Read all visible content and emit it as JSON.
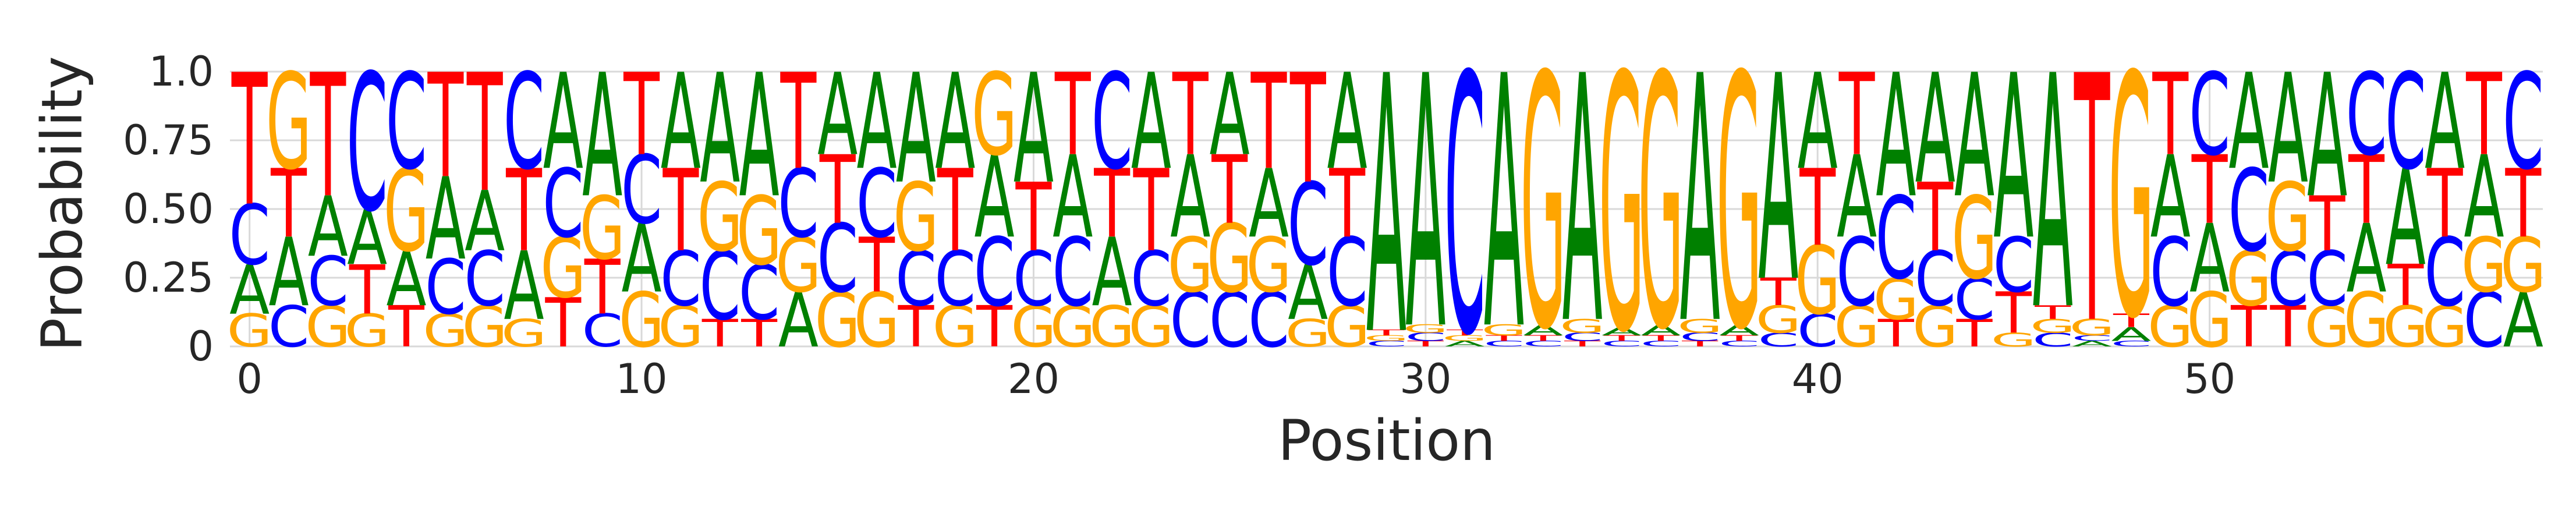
{
  "chart_data": {
    "type": "sequence-logo",
    "xlabel": "Position",
    "ylabel": "Probability",
    "xlim": [
      -0.5,
      58.5
    ],
    "ylim": [
      0,
      1
    ],
    "xticks": [
      0,
      10,
      20,
      30,
      40,
      50
    ],
    "yticks": [
      0,
      0.25,
      0.5,
      0.75,
      1.0
    ],
    "ytick_labels": [
      "0",
      "0.25",
      "0.50",
      "0.75",
      "1.0"
    ],
    "grid": true,
    "colors": {
      "A": "#008000",
      "C": "#0000ff",
      "G": "#ffa500",
      "T": "#ff0000"
    },
    "positions": [
      {
        "A": 0.18,
        "C": 0.22,
        "G": 0.12,
        "T": 0.48
      },
      {
        "A": 0.25,
        "C": 0.15,
        "G": 0.35,
        "T": 0.25
      },
      {
        "A": 0.22,
        "C": 0.18,
        "G": 0.15,
        "T": 0.45
      },
      {
        "A": 0.2,
        "C": 0.5,
        "G": 0.12,
        "T": 0.18
      },
      {
        "A": 0.2,
        "C": 0.35,
        "G": 0.3,
        "T": 0.15
      },
      {
        "A": 0.3,
        "C": 0.2,
        "G": 0.12,
        "T": 0.38
      },
      {
        "A": 0.22,
        "C": 0.2,
        "G": 0.15,
        "T": 0.43
      },
      {
        "A": 0.25,
        "C": 0.35,
        "G": 0.1,
        "T": 0.3
      },
      {
        "A": 0.35,
        "C": 0.25,
        "G": 0.22,
        "T": 0.18
      },
      {
        "A": 0.45,
        "C": 0.12,
        "G": 0.23,
        "T": 0.2
      },
      {
        "A": 0.25,
        "C": 0.25,
        "G": 0.2,
        "T": 0.3
      },
      {
        "A": 0.35,
        "C": 0.2,
        "G": 0.15,
        "T": 0.3
      },
      {
        "A": 0.4,
        "C": 0.25,
        "G": 0.25,
        "T": 0.1
      },
      {
        "A": 0.45,
        "C": 0.2,
        "G": 0.25,
        "T": 0.1
      },
      {
        "A": 0.2,
        "C": 0.25,
        "G": 0.2,
        "T": 0.35
      },
      {
        "A": 0.3,
        "C": 0.25,
        "G": 0.2,
        "T": 0.25
      },
      {
        "A": 0.35,
        "C": 0.25,
        "G": 0.2,
        "T": 0.2
      },
      {
        "A": 0.4,
        "C": 0.2,
        "G": 0.25,
        "T": 0.15
      },
      {
        "A": 0.35,
        "C": 0.2,
        "G": 0.15,
        "T": 0.3
      },
      {
        "A": 0.3,
        "C": 0.25,
        "G": 0.3,
        "T": 0.15
      },
      {
        "A": 0.4,
        "C": 0.2,
        "G": 0.15,
        "T": 0.25
      },
      {
        "A": 0.3,
        "C": 0.25,
        "G": 0.15,
        "T": 0.3
      },
      {
        "A": 0.25,
        "C": 0.35,
        "G": 0.15,
        "T": 0.25
      },
      {
        "A": 0.35,
        "C": 0.2,
        "G": 0.15,
        "T": 0.3
      },
      {
        "A": 0.3,
        "C": 0.2,
        "G": 0.2,
        "T": 0.3
      },
      {
        "A": 0.3,
        "C": 0.2,
        "G": 0.25,
        "T": 0.25
      },
      {
        "A": 0.25,
        "C": 0.2,
        "G": 0.2,
        "T": 0.35
      },
      {
        "A": 0.2,
        "C": 0.3,
        "G": 0.1,
        "T": 0.4
      },
      {
        "A": 0.35,
        "C": 0.25,
        "G": 0.15,
        "T": 0.25
      },
      {
        "A": 0.94,
        "C": 0.02,
        "G": 0.02,
        "T": 0.02
      },
      {
        "A": 0.92,
        "C": 0.03,
        "G": 0.03,
        "T": 0.02
      },
      {
        "A": 0.02,
        "C": 0.94,
        "G": 0.02,
        "T": 0.02
      },
      {
        "A": 0.92,
        "C": 0.02,
        "G": 0.04,
        "T": 0.02
      },
      {
        "A": 0.04,
        "C": 0.02,
        "G": 0.92,
        "T": 0.02
      },
      {
        "A": 0.9,
        "C": 0.03,
        "G": 0.05,
        "T": 0.02
      },
      {
        "A": 0.03,
        "C": 0.02,
        "G": 0.93,
        "T": 0.02
      },
      {
        "A": 0.04,
        "C": 0.02,
        "G": 0.92,
        "T": 0.02
      },
      {
        "A": 0.9,
        "C": 0.03,
        "G": 0.05,
        "T": 0.02
      },
      {
        "A": 0.04,
        "C": 0.02,
        "G": 0.92,
        "T": 0.02
      },
      {
        "A": 0.75,
        "C": 0.05,
        "G": 0.1,
        "T": 0.1
      },
      {
        "A": 0.35,
        "C": 0.12,
        "G": 0.25,
        "T": 0.28
      },
      {
        "A": 0.3,
        "C": 0.25,
        "G": 0.15,
        "T": 0.3
      },
      {
        "A": 0.45,
        "C": 0.3,
        "G": 0.15,
        "T": 0.1
      },
      {
        "A": 0.4,
        "C": 0.2,
        "G": 0.15,
        "T": 0.25
      },
      {
        "A": 0.45,
        "C": 0.15,
        "G": 0.3,
        "T": 0.1
      },
      {
        "A": 0.6,
        "C": 0.2,
        "G": 0.05,
        "T": 0.15
      },
      {
        "A": 0.85,
        "C": 0.05,
        "G": 0.05,
        "T": 0.05
      },
      {
        "A": 0.02,
        "C": 0.02,
        "G": 0.06,
        "T": 0.9
      },
      {
        "A": 0.05,
        "C": 0.02,
        "G": 0.88,
        "T": 0.05
      },
      {
        "A": 0.3,
        "C": 0.25,
        "G": 0.15,
        "T": 0.3
      },
      {
        "A": 0.25,
        "C": 0.3,
        "G": 0.2,
        "T": 0.25
      },
      {
        "A": 0.35,
        "C": 0.3,
        "G": 0.2,
        "T": 0.15
      },
      {
        "A": 0.4,
        "C": 0.2,
        "G": 0.25,
        "T": 0.15
      },
      {
        "A": 0.45,
        "C": 0.2,
        "G": 0.15,
        "T": 0.2
      },
      {
        "A": 0.25,
        "C": 0.3,
        "G": 0.2,
        "T": 0.25
      },
      {
        "A": 0.35,
        "C": 0.35,
        "G": 0.15,
        "T": 0.15
      },
      {
        "A": 0.35,
        "C": 0.25,
        "G": 0.15,
        "T": 0.25
      },
      {
        "A": 0.3,
        "C": 0.2,
        "G": 0.2,
        "T": 0.3
      },
      {
        "A": 0.2,
        "C": 0.35,
        "G": 0.2,
        "T": 0.25
      }
    ]
  }
}
